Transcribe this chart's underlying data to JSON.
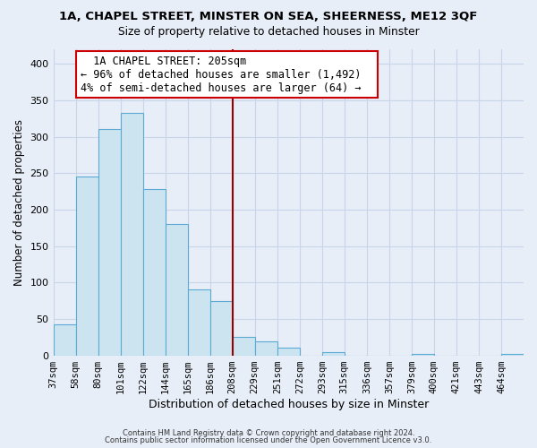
{
  "title": "1A, CHAPEL STREET, MINSTER ON SEA, SHEERNESS, ME12 3QF",
  "subtitle": "Size of property relative to detached houses in Minster",
  "xlabel": "Distribution of detached houses by size in Minster",
  "ylabel": "Number of detached properties",
  "bar_labels": [
    "37sqm",
    "58sqm",
    "80sqm",
    "101sqm",
    "122sqm",
    "144sqm",
    "165sqm",
    "186sqm",
    "208sqm",
    "229sqm",
    "251sqm",
    "272sqm",
    "293sqm",
    "315sqm",
    "336sqm",
    "357sqm",
    "379sqm",
    "400sqm",
    "421sqm",
    "443sqm",
    "464sqm"
  ],
  "bar_values": [
    42,
    245,
    311,
    333,
    228,
    180,
    90,
    75,
    25,
    19,
    10,
    0,
    5,
    0,
    0,
    0,
    2,
    0,
    0,
    0,
    2
  ],
  "bar_color": "#cce4f0",
  "bar_edge_color": "#5baad4",
  "vline_color": "#990000",
  "annotation_title": "1A CHAPEL STREET: 205sqm",
  "annotation_line1": "← 96% of detached houses are smaller (1,492)",
  "annotation_line2": "4% of semi-detached houses are larger (64) →",
  "annotation_box_color": "#ffffff",
  "annotation_box_edge": "#cc0000",
  "ylim": [
    0,
    420
  ],
  "yticks": [
    0,
    50,
    100,
    150,
    200,
    250,
    300,
    350,
    400
  ],
  "footer1": "Contains HM Land Registry data © Crown copyright and database right 2024.",
  "footer2": "Contains public sector information licensed under the Open Government Licence v3.0.",
  "background_color": "#e8eef8",
  "grid_color": "#c8d4e8"
}
